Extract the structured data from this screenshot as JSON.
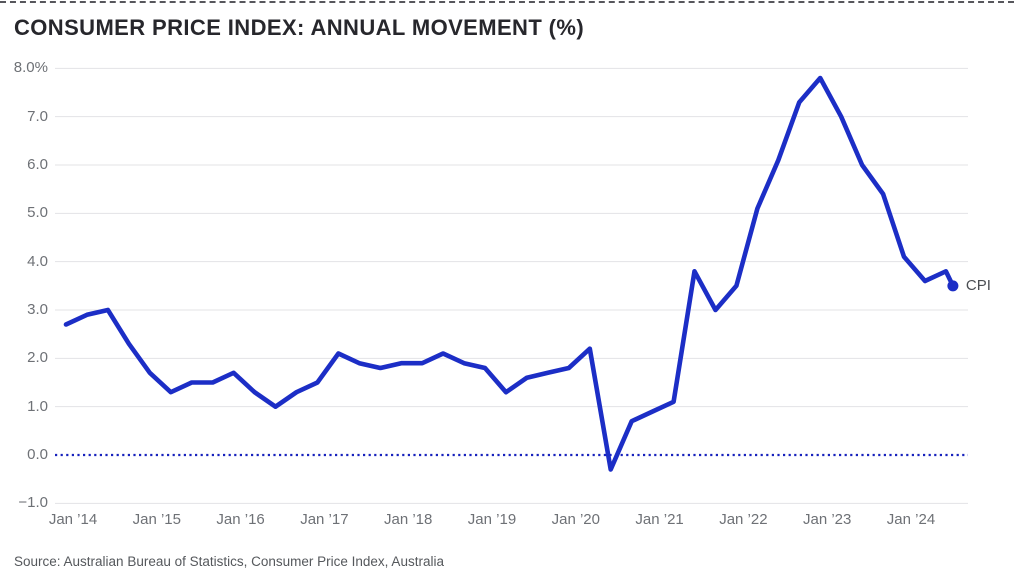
{
  "title": "CONSUMER PRICE INDEX: ANNUAL MOVEMENT (%)",
  "source": "Source: Australian Bureau of Statistics, Consumer Price Index, Australia",
  "series_label": "CPI",
  "colors": {
    "line": "#1c2ec6",
    "zero_line": "#1722bd",
    "gridline": "#e3e3e6",
    "title_text": "#27272c",
    "axis_text": "#6e7176",
    "source_text": "#55585c",
    "end_label_text": "#4b4e53",
    "top_dashed_border": "#3a3a40"
  },
  "chart_data": {
    "type": "line",
    "title": "CONSUMER PRICE INDEX: ANNUAL MOVEMENT (%)",
    "xlabel": "",
    "ylabel": "",
    "ylim": [
      -1.0,
      8.0
    ],
    "grid": "horizontal",
    "zero_line_style": "dotted",
    "legend": "end-of-line dot label",
    "y_ticks": {
      "values": [
        8,
        7,
        6,
        5,
        4,
        3,
        2,
        1,
        0,
        -1
      ],
      "labels": [
        "8.0%",
        "7.0",
        "6.0",
        "5.0",
        "4.0",
        "3.0",
        "2.0",
        "1.0",
        "0.0",
        "−1.0"
      ]
    },
    "x_ticks": {
      "months": [
        "2014-01",
        "2015-01",
        "2016-01",
        "2017-01",
        "2018-01",
        "2019-01",
        "2020-01",
        "2021-01",
        "2022-01",
        "2023-01",
        "2024-01"
      ],
      "labels": [
        "Jan ’14",
        "Jan ’15",
        "Jan ’16",
        "Jan ’17",
        "Jan ’18",
        "Jan ’19",
        "Jan ’20",
        "Jan ’21",
        "Jan ’22",
        "Jan ’23",
        "Jan ’24"
      ]
    },
    "series": [
      {
        "name": "CPI",
        "end_dot": true,
        "months": [
          "2013-12",
          "2014-03",
          "2014-06",
          "2014-09",
          "2014-12",
          "2015-03",
          "2015-06",
          "2015-09",
          "2015-12",
          "2016-03",
          "2016-06",
          "2016-09",
          "2016-12",
          "2017-03",
          "2017-06",
          "2017-09",
          "2017-12",
          "2018-03",
          "2018-06",
          "2018-09",
          "2018-12",
          "2019-03",
          "2019-06",
          "2019-09",
          "2019-12",
          "2020-03",
          "2020-06",
          "2020-09",
          "2020-12",
          "2021-03",
          "2021-06",
          "2021-09",
          "2021-12",
          "2022-03",
          "2022-06",
          "2022-09",
          "2022-12",
          "2023-03",
          "2023-06",
          "2023-09",
          "2023-12",
          "2024-03",
          "2024-06",
          "2024-07"
        ],
        "values": [
          2.7,
          2.9,
          3.0,
          2.3,
          1.7,
          1.3,
          1.5,
          1.5,
          1.7,
          1.3,
          1.0,
          1.3,
          1.5,
          2.1,
          1.9,
          1.8,
          1.9,
          1.9,
          2.1,
          1.9,
          1.8,
          1.3,
          1.6,
          1.7,
          1.8,
          2.2,
          -0.3,
          0.7,
          0.9,
          1.1,
          3.8,
          3.0,
          3.5,
          5.1,
          6.1,
          7.3,
          7.8,
          7.0,
          6.0,
          5.4,
          4.1,
          3.6,
          3.8,
          3.5
        ]
      }
    ]
  }
}
